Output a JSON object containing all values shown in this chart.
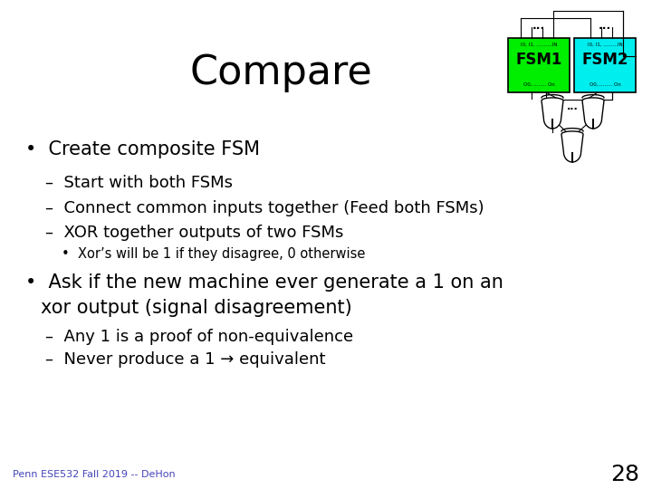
{
  "title": "Compare",
  "title_fontsize": 32,
  "background_color": "#ffffff",
  "text_color": "#000000",
  "footer_text": "Penn ESE532 Fall 2019 -- DeHon",
  "footer_color": "#4444bb",
  "page_number": "28",
  "fsm1_color": "#00ee00",
  "fsm2_color": "#00eeee",
  "fsm1_label": "FSM1",
  "fsm2_label": "FSM2",
  "fsm1_top_label": "I0, I1, ..........IN",
  "fsm2_top_label": "I0, I1, .........IN",
  "fsm1_bot_label": "O0,......... On",
  "fsm2_bot_label": "O0,......... On",
  "sub1a": "–  Start with both FSMs",
  "sub1b": "–  Connect common inputs together (Feed both FSMs)",
  "sub1c": "–  XOR together outputs of two FSMs",
  "sub1d": "•  Xor’s will be 1 if they disagree, 0 otherwise",
  "sub2a": "–  Any 1 is a proof of non-equivalence",
  "sub2b": "–  Never produce a 1 → equivalent"
}
